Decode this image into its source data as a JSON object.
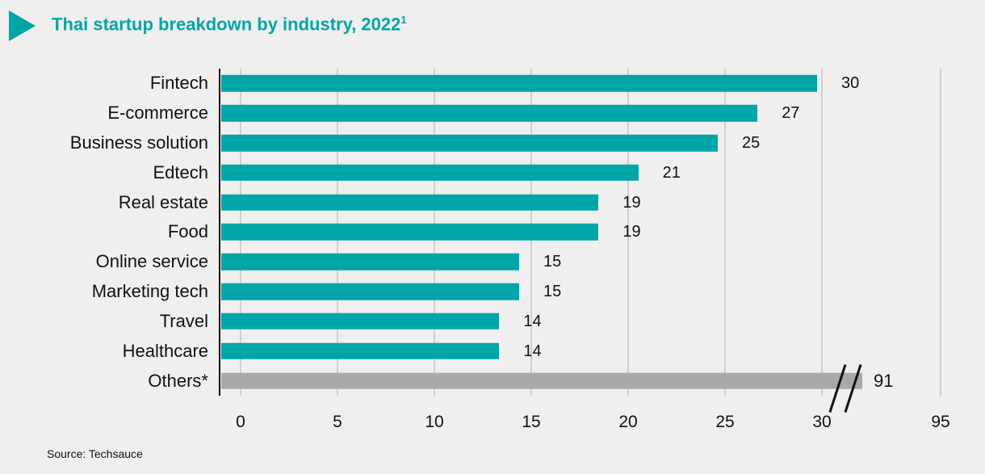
{
  "header": {
    "title": "Thai startup breakdown by industry, 2022",
    "footnote_mark": "1"
  },
  "source_note": "Source: Techsauce",
  "colors": {
    "accent_teal": "#00a5a8",
    "others_gray": "#a9a9a9",
    "background": "#efefef",
    "gridline": "#cfcfcf",
    "axis_line": "#111111",
    "text": "#111111"
  },
  "icons": {
    "title_bullet": "right-pointing-triangle-icon"
  },
  "chart_data": {
    "type": "bar",
    "orientation": "horizontal",
    "title": "Thai startup breakdown by industry, 2022¹",
    "categories": [
      "Fintech",
      "E-commerce",
      "Business solution",
      "Edtech",
      "Real estate",
      "Food",
      "Online service",
      "Marketing tech",
      "Travel",
      "Healthcare",
      "Others*"
    ],
    "values": [
      30,
      27,
      25,
      21,
      19,
      19,
      15,
      15,
      14,
      14,
      91
    ],
    "bar_color": "#00a5a8",
    "others_series": {
      "label": "Others*",
      "value": 91,
      "color": "#a9a9a9",
      "axis_break": true
    },
    "xticks": [
      0,
      5,
      10,
      15,
      20,
      25,
      30,
      95
    ],
    "x_axis_break": {
      "between": [
        30,
        95
      ],
      "marker": "//"
    },
    "xlabel": "",
    "ylabel": "",
    "grid": true,
    "legend": false,
    "source": "Source: Techsauce"
  }
}
